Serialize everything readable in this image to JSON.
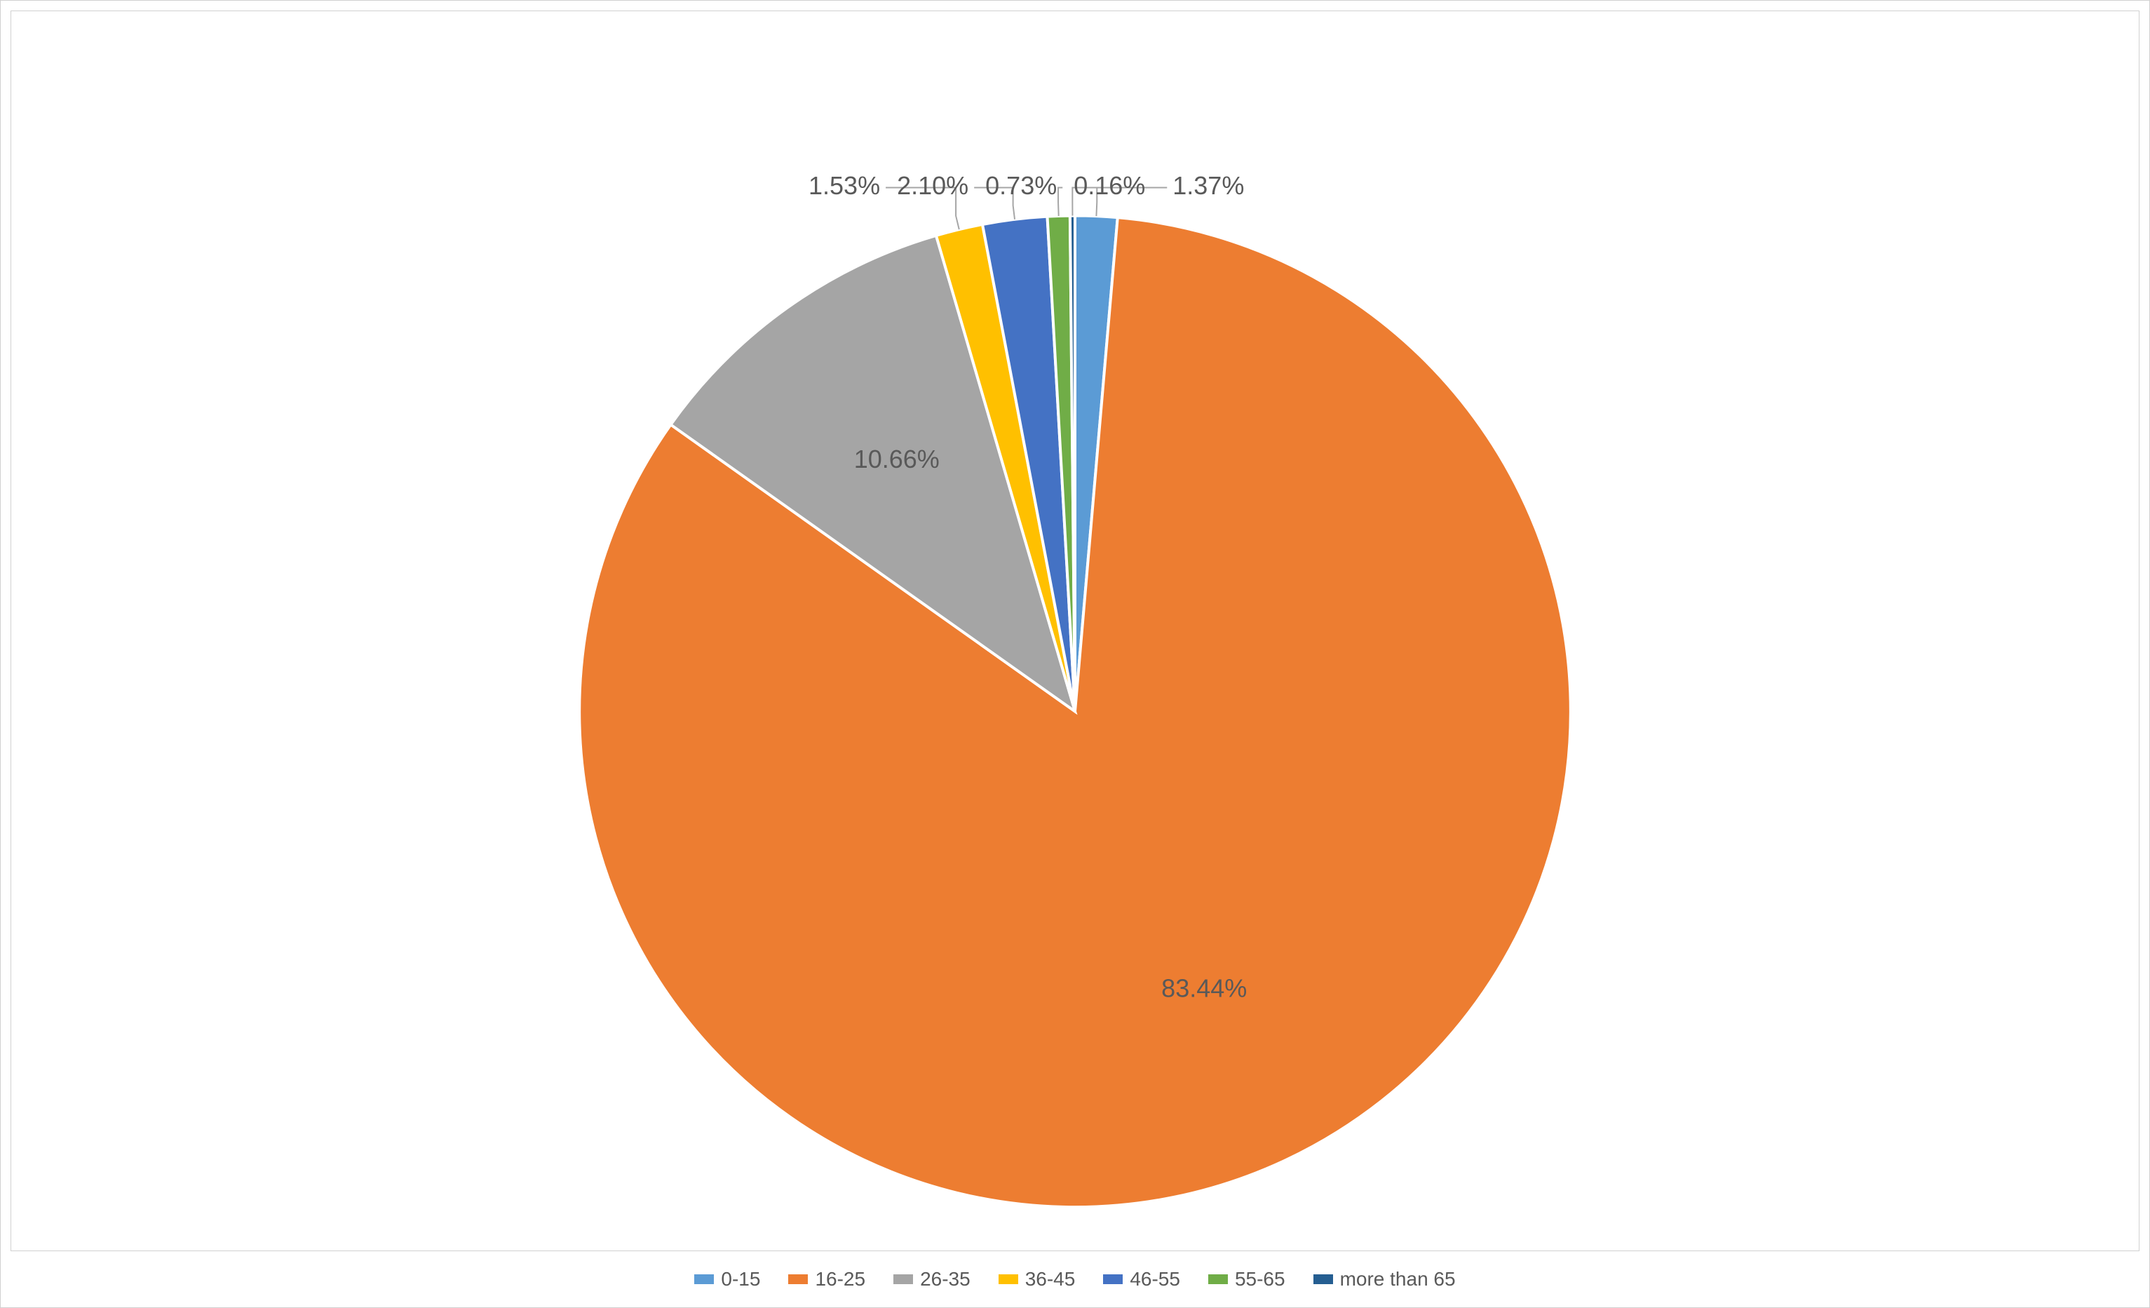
{
  "chart": {
    "type": "pie",
    "background_color": "#ffffff",
    "border_color": "#d0d0d0",
    "slice_border_color": "#ffffff",
    "slice_border_width": 4,
    "label_color": "#595959",
    "label_fontsize_pt": 28,
    "legend_fontsize_pt": 22,
    "leader_line_color": "#a6a6a6",
    "leader_line_width": 2,
    "slices": [
      {
        "label": "0-15",
        "value": 1.37,
        "display": "1.37%",
        "color": "#5b9bd5"
      },
      {
        "label": "16-25",
        "value": 83.44,
        "display": "83.44%",
        "color": "#ed7d31"
      },
      {
        "label": "26-35",
        "value": 10.66,
        "display": "10.66%",
        "color": "#a5a5a5"
      },
      {
        "label": "36-45",
        "value": 1.53,
        "display": "1.53%",
        "color": "#ffc000"
      },
      {
        "label": "46-55",
        "value": 2.1,
        "display": "2.10%",
        "color": "#4472c4"
      },
      {
        "label": "55-65",
        "value": 0.73,
        "display": "0.73%",
        "color": "#70ad47"
      },
      {
        "label": "more than 65",
        "value": 0.16,
        "display": "0.16%",
        "color": "#255e91"
      }
    ],
    "start_angle_deg": -90,
    "legend_position": "bottom"
  }
}
